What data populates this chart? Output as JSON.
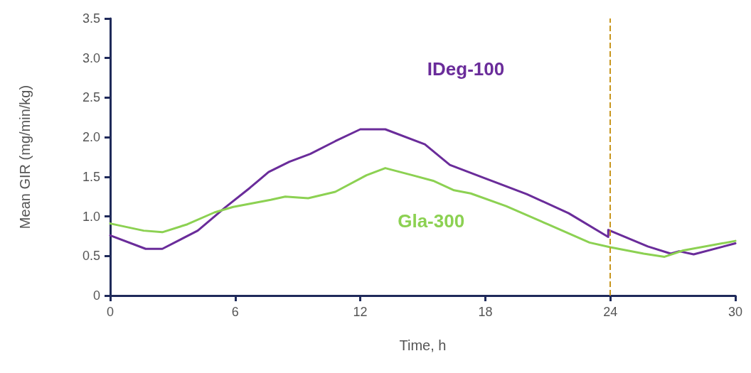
{
  "chart_data": {
    "type": "line",
    "xlabel": "Time, h",
    "ylabel": "Mean GIR (mg/min/kg)",
    "xlim": [
      0,
      30
    ],
    "xticks": [
      0,
      6,
      12,
      18,
      24,
      30
    ],
    "ylim": [
      0,
      3.5
    ],
    "yticks": [
      0,
      {
        "value": 0.5,
        "label": "0.5"
      },
      {
        "value": 1,
        "label": "1.0"
      },
      {
        "value": 1.5,
        "label": "1.5"
      },
      {
        "value": 2,
        "label": "2.0"
      },
      {
        "value": 2.5,
        "label": "2.5"
      },
      {
        "value": 3,
        "label": "3.0"
      },
      {
        "value": 3.5,
        "label": "3.5"
      }
    ],
    "grid": false,
    "legend": false,
    "marker": "none",
    "line_style": "solid",
    "ref_lines": [
      {
        "axis": "x",
        "value": 24,
        "label": null,
        "color": "#c8961e",
        "line_style": "dashed"
      }
    ],
    "series": [
      {
        "name": "IDeg-100",
        "color": "#6a2c9a",
        "x": [
          0,
          1.7,
          2.5,
          4.2,
          5.5,
          6.7,
          7.6,
          8.6,
          9.6,
          10.8,
          12,
          13.2,
          15.1,
          16.3,
          18,
          20,
          22,
          23.9,
          23.9,
          25.8,
          26.9,
          27.3,
          28,
          30
        ],
        "values": [
          0.76,
          0.59,
          0.59,
          0.82,
          1.11,
          1.36,
          1.56,
          1.69,
          1.79,
          1.95,
          2.1,
          2.1,
          1.91,
          1.65,
          1.48,
          1.28,
          1.04,
          0.74,
          0.83,
          0.62,
          0.53,
          0.56,
          0.52,
          0.66
        ]
      },
      {
        "name": "Gla-300",
        "color": "#8cd152",
        "x": [
          0,
          1.6,
          2.5,
          3.7,
          5,
          5.9,
          7.7,
          8.4,
          9.5,
          10.8,
          12.3,
          13.2,
          14.5,
          15.5,
          16.5,
          17.3,
          19,
          21,
          23,
          24,
          25.6,
          26.6,
          27.5,
          30
        ],
        "values": [
          0.91,
          0.82,
          0.8,
          0.9,
          1.05,
          1.12,
          1.21,
          1.25,
          1.23,
          1.31,
          1.52,
          1.61,
          1.52,
          1.45,
          1.33,
          1.29,
          1.13,
          0.9,
          0.67,
          0.61,
          0.53,
          0.49,
          0.57,
          0.69
        ]
      }
    ]
  }
}
